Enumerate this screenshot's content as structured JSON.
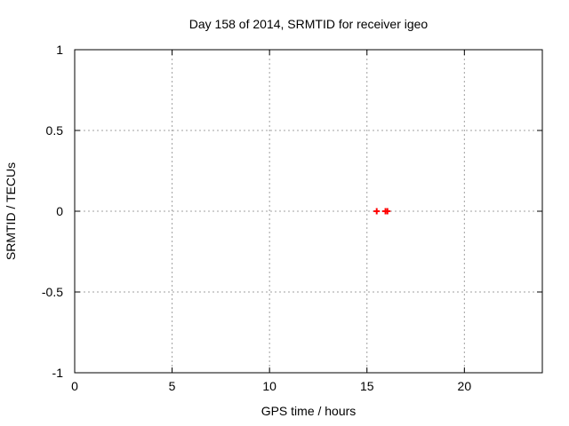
{
  "window": {
    "background": "#ffffff"
  },
  "chart_data": {
    "type": "scatter",
    "title": "Day 158 of 2014, SRMTID for receiver igeo",
    "xlabel": "GPS time / hours",
    "ylabel": "SRMTID / TECUs",
    "xlim": [
      0,
      24
    ],
    "ylim": [
      -1,
      1
    ],
    "xticks": {
      "values": [
        0,
        5,
        10,
        15,
        20
      ],
      "labels": [
        "0",
        "5",
        "10",
        "15",
        "20"
      ]
    },
    "yticks": {
      "values": [
        -1,
        -0.5,
        0,
        0.5,
        1
      ],
      "labels": [
        "-1",
        "-0.5",
        "0",
        "0.5",
        "1"
      ]
    },
    "grid": "dotted",
    "legend": false,
    "series": [
      {
        "marker": "plus",
        "color": "#ff0000",
        "points": [
          [
            15.5,
            0
          ],
          [
            15.95,
            0
          ],
          [
            16.05,
            0
          ]
        ]
      }
    ],
    "colors": {
      "grid": "#a0a0a0",
      "axis": "#000000",
      "text": "#000000",
      "background": "#ffffff"
    }
  }
}
